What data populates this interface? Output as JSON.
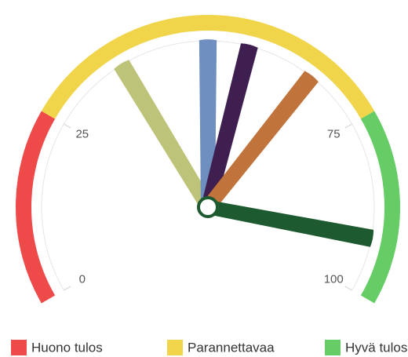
{
  "chart_data": {
    "type": "gauge",
    "ylim": [
      0,
      100
    ],
    "yticks": [
      0,
      25,
      75,
      100
    ],
    "bands": [
      {
        "name": "Huono tulos",
        "from": 0,
        "to": 25,
        "color": "#ee4a4a"
      },
      {
        "name": "Parannettavaa",
        "from": 25,
        "to": 75,
        "color": "#f0d44a"
      },
      {
        "name": "Hyvä tulos",
        "from": 75,
        "to": 100,
        "color": "#66cc66"
      }
    ],
    "series": [
      {
        "color": "#bdc47a",
        "values": [
          37
        ]
      },
      {
        "color": "#6f8fc0",
        "values": [
          50
        ]
      },
      {
        "color": "#3f1f4f",
        "values": [
          56
        ]
      },
      {
        "color": "#c0733a",
        "values": [
          66
        ]
      },
      {
        "color": "#1e5a30",
        "values": [
          92
        ]
      }
    ]
  }
}
